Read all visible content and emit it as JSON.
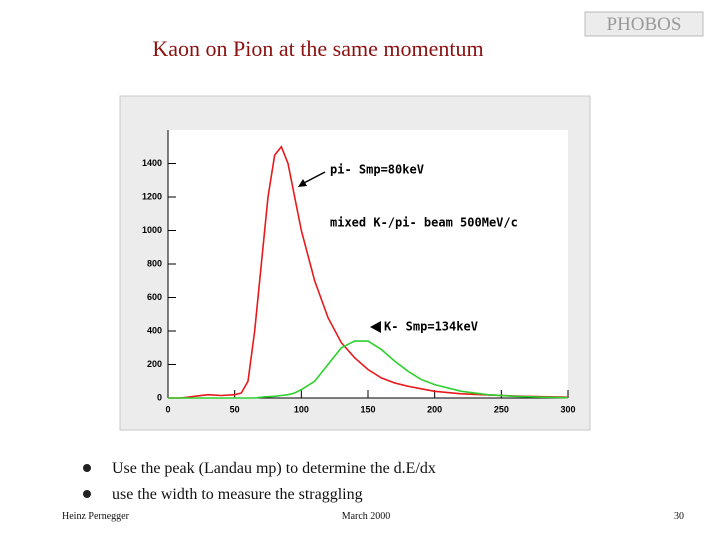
{
  "slide": {
    "logo": "PHOBOS",
    "title": "Kaon on Pion at the same momentum",
    "bullets": [
      "Use the peak (Landau mp) to determine the d.E/dx",
      "use the width to measure the straggling"
    ],
    "footer": {
      "author": "Heinz Pernegger",
      "date": "March 2000",
      "page": "30"
    }
  },
  "chart_data": {
    "type": "line",
    "annotations": [
      "pi- Smp=80keV",
      "mixed K-/pi- beam 500MeV/c",
      "K- Smp=134keV"
    ],
    "x": [
      0,
      10,
      20,
      30,
      40,
      50,
      55,
      60,
      65,
      70,
      75,
      80,
      85,
      90,
      95,
      100,
      110,
      120,
      130,
      140,
      150,
      160,
      170,
      180,
      190,
      200,
      220,
      240,
      260,
      280,
      300
    ],
    "series": [
      {
        "color": "#e8191c",
        "values": [
          0,
          0,
          10,
          20,
          15,
          20,
          30,
          100,
          400,
          800,
          1200,
          1450,
          1500,
          1400,
          1200,
          1000,
          700,
          480,
          330,
          240,
          170,
          120,
          90,
          70,
          55,
          40,
          25,
          18,
          12,
          8,
          5
        ]
      },
      {
        "color": "#2ed12e",
        "values": [
          0,
          0,
          0,
          0,
          0,
          0,
          0,
          0,
          0,
          5,
          8,
          10,
          15,
          20,
          30,
          50,
          100,
          200,
          300,
          340,
          340,
          290,
          220,
          160,
          110,
          80,
          40,
          20,
          10,
          5,
          2
        ]
      }
    ],
    "xlim": [
      0,
      300
    ],
    "xticks": [
      0,
      50,
      100,
      150,
      200,
      250,
      300
    ],
    "ylim": [
      0,
      1600
    ],
    "yticks": [
      0,
      200,
      400,
      600,
      800,
      1000,
      1200,
      1400
    ]
  }
}
